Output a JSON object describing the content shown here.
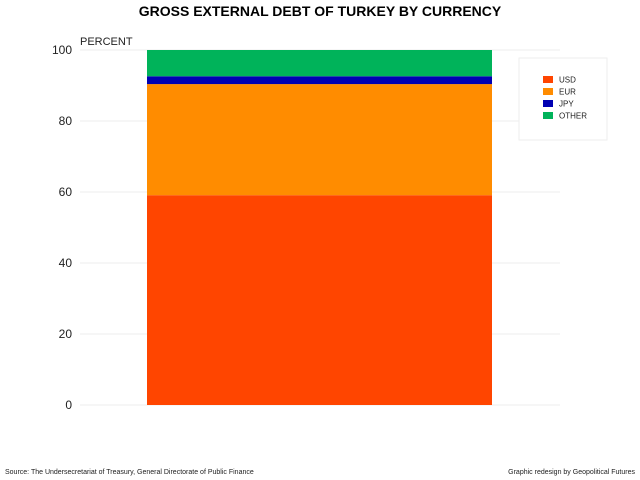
{
  "chart_data": {
    "type": "bar",
    "stacked": true,
    "title": "GROSS EXTERNAL DEBT OF TURKEY BY CURRENCY",
    "ylabel": "PERCENT",
    "xlabel": "",
    "ylim": [
      0,
      100
    ],
    "yticks": [
      0,
      20,
      40,
      60,
      80,
      100
    ],
    "grid": true,
    "legend_position": "top-right",
    "categories": [
      ""
    ],
    "series": [
      {
        "name": "USD",
        "values": [
          59.1
        ],
        "color": "#ff4500"
      },
      {
        "name": "EUR",
        "values": [
          31.3
        ],
        "color": "#ff8c00"
      },
      {
        "name": "JPY",
        "values": [
          2.2
        ],
        "color": "#0000b3"
      },
      {
        "name": "OTHER",
        "values": [
          7.4
        ],
        "color": "#00b35a"
      }
    ]
  },
  "footer": {
    "source": "Source: The Undersecretariat of Treasury, General Directorate of Public Finance",
    "credit": "Graphic redesign by Geopolitical Futures"
  }
}
